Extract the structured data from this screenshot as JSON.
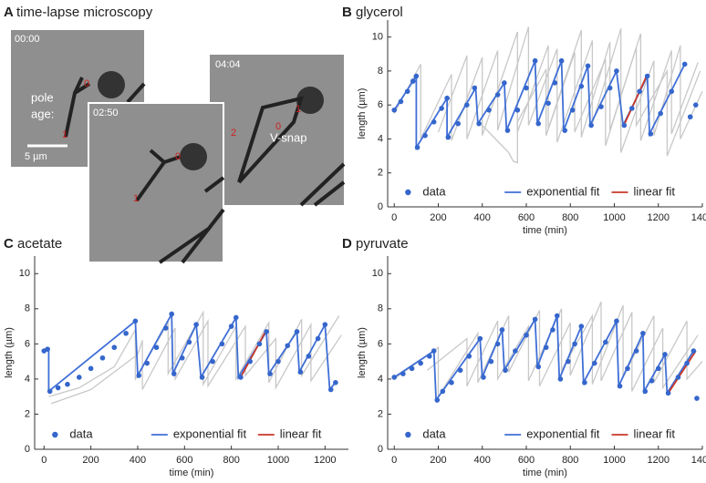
{
  "panel_a": {
    "label": "A",
    "title": "time-lapse microscopy",
    "frames": [
      {
        "time": "00:00"
      },
      {
        "time": "02:50"
      },
      {
        "time": "04:04"
      }
    ],
    "annotations": [
      "pole",
      "age:",
      "V-snap"
    ],
    "pole_ages": [
      "0",
      "1",
      "0",
      "1",
      "2",
      "0",
      "1"
    ],
    "scale_bar": "5 µm"
  },
  "chart_data": [
    {
      "type": "line",
      "label": "B",
      "title": "glycerol",
      "xlabel": "time (min)",
      "ylabel": "length (µm)",
      "xlim": [
        -30,
        1400
      ],
      "ylim": [
        0,
        11
      ],
      "xticks": [
        0,
        200,
        400,
        600,
        800,
        1000,
        1200,
        1400
      ],
      "yticks": [
        0,
        2,
        4,
        6,
        8,
        10
      ],
      "legend": "bottom",
      "background_traces": [
        {
          "color": "#c8c8c8",
          "x": [
            0,
            120,
            120,
            260,
            260,
            400,
            400,
            560,
            560,
            700,
            700,
            850,
            850,
            980,
            980,
            1120,
            1120,
            1260,
            1260,
            1380
          ],
          "values": [
            5.5,
            8.4,
            4.0,
            7.8,
            3.9,
            8.8,
            4.2,
            10.3,
            4.4,
            9.5,
            4.6,
            10.4,
            4.1,
            9.7,
            4.5,
            10.2,
            3.9,
            9.2,
            4.3,
            8.5
          ]
        },
        {
          "color": "#c8c8c8",
          "x": [
            200,
            330,
            330,
            470,
            470,
            610,
            610,
            740,
            740,
            900,
            900,
            1030,
            1030,
            1180,
            1180,
            1300,
            1300,
            1400
          ],
          "values": [
            4.4,
            8.9,
            4.0,
            9.2,
            4.5,
            10.6,
            4.8,
            9.3,
            3.8,
            9.8,
            4.9,
            10.5,
            3.2,
            8.6,
            4.2,
            9.5,
            4.0,
            6.8
          ]
        },
        {
          "color": "#c8c8c8",
          "x": [
            400,
            520,
            540,
            560,
            560,
            690,
            690,
            820,
            820,
            960,
            960,
            1100,
            1100,
            1240,
            1240,
            1390
          ],
          "values": [
            4.8,
            3.2,
            2.7,
            2.6,
            5.0,
            8.1,
            4.2,
            9.1,
            4.4,
            8.7,
            3.6,
            9.4,
            4.8,
            8.0,
            3.0,
            8.0
          ]
        }
      ],
      "series": [
        {
          "name": "data",
          "color": "#3566cc",
          "mode": "markers",
          "x": [
            0,
            30,
            60,
            85,
            100,
            105,
            140,
            180,
            215,
            240,
            245,
            290,
            330,
            365,
            385,
            430,
            470,
            500,
            515,
            560,
            600,
            640,
            655,
            700,
            730,
            760,
            775,
            810,
            850,
            880,
            895,
            940,
            980,
            1010,
            1045,
            1080,
            1115,
            1150,
            1165,
            1210,
            1260,
            1320,
            1345,
            1370
          ],
          "values": [
            5.7,
            6.2,
            6.8,
            7.4,
            7.7,
            3.5,
            4.2,
            5.0,
            5.8,
            6.4,
            4.1,
            4.9,
            6.0,
            7.0,
            4.9,
            5.7,
            6.6,
            7.3,
            4.5,
            5.7,
            7.0,
            8.6,
            4.9,
            6.1,
            7.3,
            8.6,
            4.5,
            5.7,
            7.1,
            8.3,
            4.8,
            5.9,
            7.0,
            8.0,
            4.8,
            5.8,
            6.8,
            7.7,
            4.3,
            5.5,
            6.8,
            8.4,
            5.3,
            6.0
          ]
        },
        {
          "name": "exponential fit",
          "color": "#3f6fd6",
          "mode": "lines",
          "x": [
            0,
            100,
            100,
            240,
            240,
            370,
            380,
            500,
            510,
            640,
            650,
            760,
            770,
            880,
            890,
            1010,
            1040,
            1150,
            1160,
            1320
          ],
          "values": [
            5.7,
            7.7,
            3.5,
            6.4,
            4.1,
            7.0,
            4.9,
            7.3,
            4.5,
            8.6,
            4.9,
            8.6,
            4.5,
            8.3,
            4.8,
            8.0,
            4.8,
            7.7,
            4.3,
            8.4
          ]
        },
        {
          "name": "linear fit",
          "color": "#c8382a",
          "mode": "lines",
          "x": [
            1040,
            1150
          ],
          "values": [
            4.7,
            7.8
          ]
        }
      ]
    },
    {
      "type": "line",
      "label": "C",
      "title": "acetate",
      "xlabel": "time (min)",
      "ylabel": "length (µm)",
      "xlim": [
        -40,
        1300
      ],
      "ylim": [
        0,
        11
      ],
      "xticks": [
        0,
        200,
        400,
        600,
        800,
        1000,
        1200
      ],
      "yticks": [
        0,
        2,
        4,
        6,
        8,
        10
      ],
      "legend": "bottom",
      "background_traces": [
        {
          "color": "#c8c8c8",
          "x": [
            20,
            150,
            300,
            390,
            390,
            530,
            530,
            680,
            680,
            820,
            820,
            960,
            960,
            1100,
            1100,
            1260
          ],
          "values": [
            3.0,
            3.5,
            4.7,
            6.8,
            4.0,
            7.2,
            4.3,
            7.8,
            3.7,
            7.0,
            4.0,
            7.2,
            3.8,
            7.4,
            4.2,
            7.6
          ]
        },
        {
          "color": "#c8c8c8",
          "x": [
            30,
            200,
            400,
            420,
            420,
            560,
            560,
            700,
            700,
            860,
            860,
            990,
            990,
            1140,
            1140,
            1270
          ],
          "values": [
            2.6,
            3.4,
            5.4,
            6.2,
            3.4,
            6.9,
            4.0,
            7.3,
            3.6,
            7.0,
            4.2,
            6.3,
            3.5,
            7.1,
            3.9,
            6.5
          ]
        }
      ],
      "series": [
        {
          "name": "data",
          "color": "#3566cc",
          "mode": "markers",
          "x": [
            0,
            15,
            25,
            60,
            100,
            150,
            200,
            250,
            300,
            350,
            390,
            405,
            440,
            480,
            520,
            545,
            555,
            590,
            620,
            650,
            675,
            720,
            760,
            800,
            820,
            840,
            880,
            920,
            950,
            965,
            1000,
            1040,
            1080,
            1095,
            1130,
            1170,
            1200,
            1225,
            1245
          ],
          "values": [
            5.6,
            5.7,
            3.3,
            3.5,
            3.7,
            4.1,
            4.6,
            5.2,
            5.8,
            6.6,
            7.3,
            4.2,
            4.9,
            5.8,
            6.9,
            7.7,
            4.3,
            5.2,
            6.1,
            7.1,
            4.1,
            5.0,
            6.0,
            7.0,
            7.5,
            4.1,
            5.0,
            6.0,
            6.7,
            4.3,
            5.0,
            5.9,
            6.7,
            4.4,
            5.3,
            6.3,
            7.1,
            3.4,
            3.8
          ]
        },
        {
          "name": "exponential fit",
          "color": "#3f6fd6",
          "mode": "lines",
          "x": [
            0,
            20,
            20,
            390,
            400,
            545,
            550,
            650,
            670,
            820,
            830,
            950,
            960,
            1080,
            1090,
            1200,
            1220,
            1250
          ],
          "values": [
            5.6,
            5.7,
            3.3,
            7.3,
            4.2,
            7.7,
            4.3,
            7.1,
            4.1,
            7.5,
            4.1,
            6.7,
            4.3,
            6.7,
            4.4,
            7.1,
            3.4,
            3.9
          ]
        },
        {
          "name": "linear fit",
          "color": "#c8382a",
          "mode": "lines",
          "x": [
            840,
            950
          ],
          "values": [
            4.1,
            6.8
          ]
        }
      ]
    },
    {
      "type": "line",
      "label": "D",
      "title": "pyruvate",
      "xlabel": "time (min)",
      "ylabel": "length (µm)",
      "xlim": [
        -30,
        1400
      ],
      "ylim": [
        0,
        11
      ],
      "xticks": [
        0,
        200,
        400,
        600,
        800,
        1000,
        1200,
        1400
      ],
      "yticks": [
        0,
        2,
        4,
        6,
        8,
        10
      ],
      "legend": "bottom",
      "background_traces": [
        {
          "color": "#c8c8c8",
          "x": [
            0,
            200,
            200,
            380,
            380,
            520,
            520,
            660,
            660,
            800,
            800,
            940,
            940,
            1080,
            1080,
            1220,
            1220,
            1380
          ],
          "values": [
            4.0,
            5.8,
            3.0,
            6.6,
            3.8,
            7.6,
            4.4,
            7.9,
            3.6,
            7.2,
            4.2,
            8.4,
            3.9,
            7.8,
            3.3,
            6.9,
            3.5,
            6.5
          ]
        },
        {
          "color": "#c8c8c8",
          "x": [
            150,
            330,
            330,
            470,
            470,
            610,
            610,
            760,
            760,
            900,
            900,
            1040,
            1040,
            1180,
            1180,
            1330,
            1330,
            1400
          ],
          "values": [
            4.5,
            6.3,
            3.6,
            7.3,
            4.0,
            7.0,
            3.9,
            8.0,
            4.5,
            7.6,
            3.7,
            8.2,
            4.1,
            7.6,
            3.8,
            7.3,
            4.0,
            5.0
          ]
        }
      ],
      "series": [
        {
          "name": "data",
          "color": "#3566cc",
          "mode": "markers",
          "x": [
            0,
            40,
            80,
            120,
            160,
            180,
            195,
            220,
            260,
            300,
            340,
            390,
            405,
            440,
            470,
            490,
            505,
            550,
            600,
            640,
            655,
            690,
            720,
            740,
            755,
            790,
            820,
            850,
            865,
            910,
            960,
            1010,
            1025,
            1060,
            1100,
            1130,
            1140,
            1170,
            1200,
            1230,
            1245,
            1290,
            1330,
            1360,
            1375
          ],
          "values": [
            4.1,
            4.3,
            4.6,
            4.9,
            5.3,
            5.6,
            2.8,
            3.3,
            3.8,
            4.5,
            5.3,
            6.3,
            4.1,
            5.0,
            6.0,
            6.8,
            4.5,
            5.6,
            6.5,
            7.4,
            4.7,
            5.8,
            6.8,
            7.6,
            4.0,
            5.0,
            6.0,
            7.0,
            3.8,
            4.9,
            6.1,
            7.3,
            3.6,
            4.6,
            5.6,
            6.6,
            3.3,
            3.9,
            4.6,
            5.4,
            3.2,
            4.1,
            4.9,
            5.6,
            2.9
          ]
        },
        {
          "name": "exponential fit",
          "color": "#3f6fd6",
          "mode": "lines",
          "x": [
            0,
            180,
            190,
            390,
            400,
            490,
            500,
            640,
            650,
            740,
            750,
            850,
            860,
            1010,
            1020,
            1130,
            1135,
            1230,
            1240,
            1360
          ],
          "values": [
            4.1,
            5.6,
            2.8,
            6.3,
            4.1,
            6.8,
            4.5,
            7.4,
            4.7,
            7.6,
            4.0,
            7.0,
            3.8,
            7.3,
            3.6,
            6.6,
            3.3,
            5.4,
            3.2,
            5.6
          ]
        },
        {
          "name": "linear fit",
          "color": "#c8382a",
          "mode": "lines",
          "x": [
            1240,
            1370
          ],
          "values": [
            3.1,
            5.6
          ]
        }
      ]
    }
  ]
}
